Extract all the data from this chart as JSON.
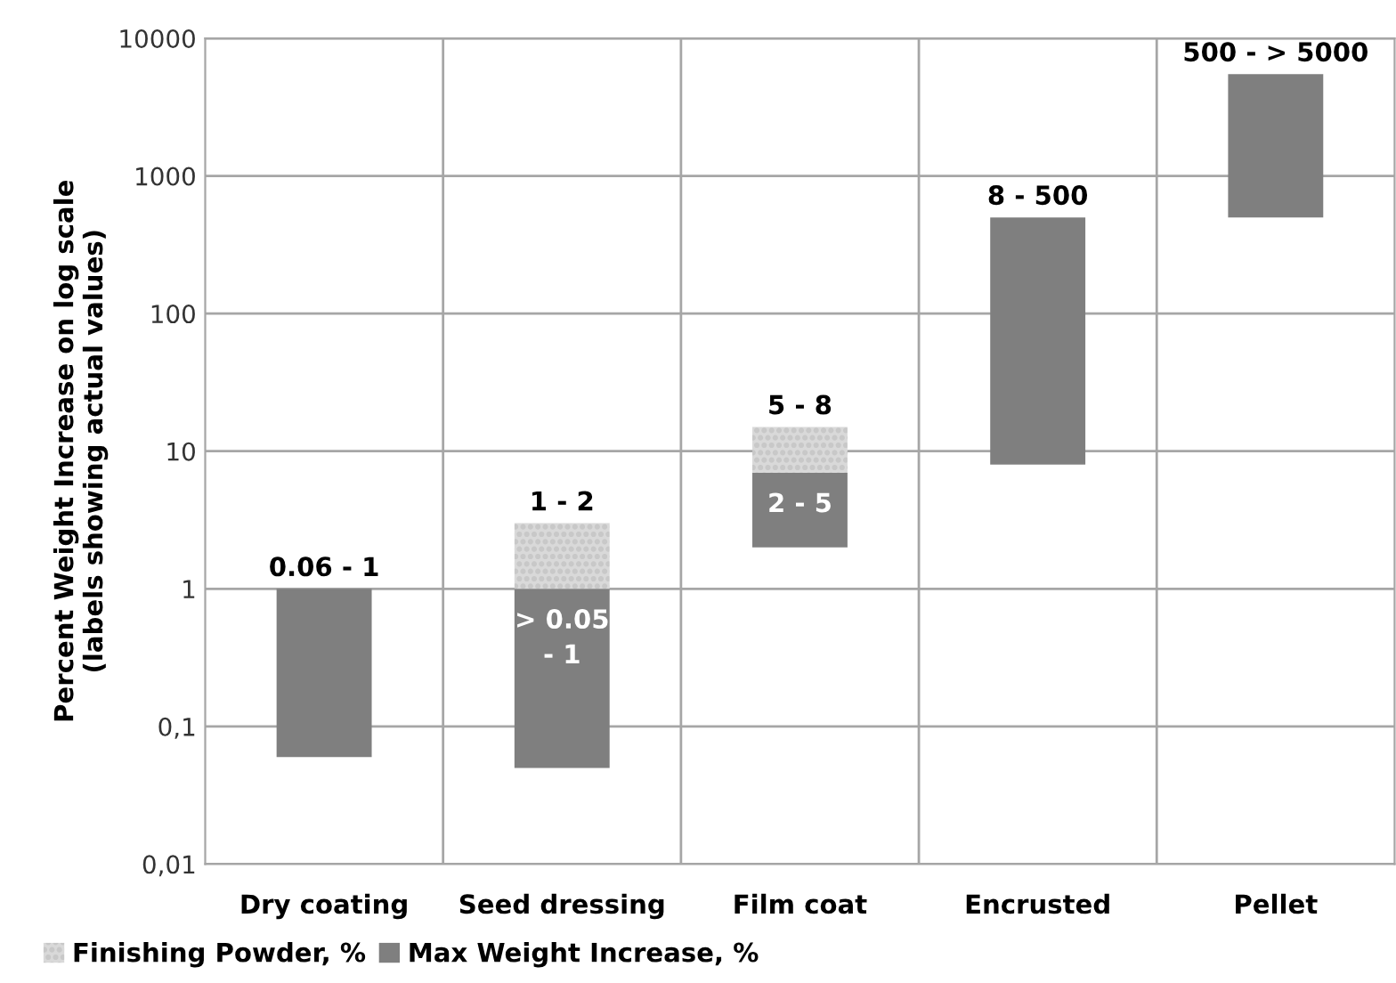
{
  "chart_data": {
    "type": "bar",
    "log": "y",
    "ylabel": "Percent Weight Increase on log scale\n(labels showing actual values)",
    "categories": [
      "Dry coating",
      "Seed dressing",
      "Film coat",
      "Encrusted",
      "Pellet"
    ],
    "series": [
      {
        "name": "Max Weight Increase, %",
        "color": "#7f7f7f",
        "base": [
          0.06,
          0.05,
          2,
          8,
          500
        ],
        "values": [
          0.94,
          0.95,
          5,
          492,
          5000
        ]
      },
      {
        "name": "Finishing Powder, %",
        "color": "#d9d9d9",
        "base": [
          null,
          1,
          7,
          null,
          null
        ],
        "values": [
          null,
          2,
          8,
          null,
          null
        ]
      }
    ],
    "annotations": [
      {
        "text": "0.06 - 1",
        "x": "Dry coating",
        "y": 1
      },
      {
        "text": "1 - 2",
        "x": "Seed dressing",
        "y": 3
      },
      {
        "text": "> 0.05\n- 1",
        "x": "Seed dressing",
        "y": 1
      },
      {
        "text": "5 - 8",
        "x": "Film coat",
        "y": 15
      },
      {
        "text": "2 - 5",
        "x": "Film coat",
        "y": 7
      },
      {
        "text": "8 - 500",
        "x": "Encrusted",
        "y": 500
      },
      {
        "text": "500 - > 5000",
        "x": "Pellet",
        "y": 5500
      }
    ],
    "ylim": [
      0.01,
      10000
    ],
    "yticks": [
      {
        "value": 0.01,
        "label": "0,01"
      },
      {
        "value": 0.1,
        "label": "0,1"
      },
      1,
      10,
      100,
      1000,
      10000
    ],
    "grid": true,
    "legend": "bottom left"
  }
}
